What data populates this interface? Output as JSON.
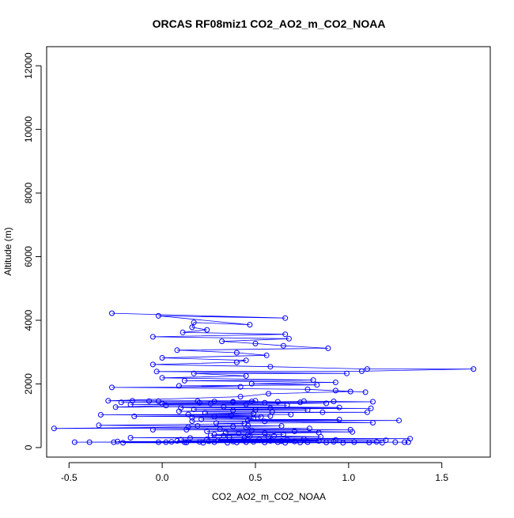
{
  "chart_data": {
    "type": "scatter",
    "title": "ORCAS RF08miz1 CO2_AO2_m_CO2_NOAA",
    "xlabel": "CO2_AO2_m_CO2_NOAA",
    "ylabel": "Altitude (m)",
    "xlim": [
      -0.62,
      1.76
    ],
    "ylim": [
      -300,
      12600
    ],
    "x_ticks": [
      -0.5,
      0.0,
      0.5,
      1.0,
      1.5
    ],
    "x_tick_labels": [
      "-0.5",
      "0.0",
      "0.5",
      "1.0",
      "1.5"
    ],
    "y_ticks": [
      0,
      2000,
      4000,
      6000,
      8000,
      10000,
      12000
    ],
    "y_tick_labels": [
      "0",
      "2000",
      "4000",
      "6000",
      "8000",
      "10000",
      "12000"
    ],
    "grid": false,
    "legend": "none",
    "series_color": "#0000ff",
    "marker": "open-circle",
    "connected": true,
    "points": [
      [
        -0.27,
        4220
      ],
      [
        0.66,
        4070
      ],
      [
        -0.02,
        4140
      ],
      [
        0.47,
        3860
      ],
      [
        0.17,
        3930
      ],
      [
        0.16,
        3780
      ],
      [
        0.24,
        3700
      ],
      [
        0.11,
        3620
      ],
      [
        0.66,
        3560
      ],
      [
        -0.05,
        3480
      ],
      [
        0.68,
        3420
      ],
      [
        0.32,
        3340
      ],
      [
        0.5,
        3270
      ],
      [
        0.65,
        3200
      ],
      [
        0.89,
        3120
      ],
      [
        0.08,
        3060
      ],
      [
        0.4,
        2980
      ],
      [
        0.56,
        2900
      ],
      [
        0.0,
        2820
      ],
      [
        0.45,
        2740
      ],
      [
        0.4,
        2680
      ],
      [
        -0.05,
        2610
      ],
      [
        0.58,
        2540
      ],
      [
        1.1,
        2470
      ],
      [
        1.67,
        2470
      ],
      [
        1.07,
        2400
      ],
      [
        -0.03,
        2390
      ],
      [
        0.99,
        2330
      ],
      [
        0.17,
        2330
      ],
      [
        0.45,
        2250
      ],
      [
        0.0,
        2190
      ],
      [
        0.81,
        2120
      ],
      [
        0.12,
        2100
      ],
      [
        0.93,
        2050
      ],
      [
        0.48,
        2010
      ],
      [
        0.83,
        1970
      ],
      [
        0.09,
        1940
      ],
      [
        0.42,
        1910
      ],
      [
        -0.27,
        1890
      ],
      [
        0.78,
        1830
      ],
      [
        1.09,
        1740
      ],
      [
        0.93,
        1790
      ],
      [
        1.01,
        1760
      ],
      [
        0.57,
        1690
      ],
      [
        0.42,
        1600
      ],
      [
        -0.29,
        1470
      ],
      [
        0.5,
        1470
      ],
      [
        -0.16,
        1470
      ],
      [
        -0.07,
        1460
      ],
      [
        -0.02,
        1460
      ],
      [
        0.19,
        1460
      ],
      [
        0.28,
        1450
      ],
      [
        0.38,
        1440
      ],
      [
        0.48,
        1450
      ],
      [
        0.62,
        1440
      ],
      [
        0.76,
        1460
      ],
      [
        0.92,
        1450
      ],
      [
        1.13,
        1440
      ],
      [
        0.74,
        1420
      ],
      [
        0.38,
        1420
      ],
      [
        -0.22,
        1420
      ],
      [
        0.2,
        1410
      ],
      [
        0.55,
        1410
      ],
      [
        0.88,
        1390
      ],
      [
        0.0,
        1380
      ],
      [
        0.26,
        1380
      ],
      [
        -0.17,
        1350
      ],
      [
        0.45,
        1360
      ],
      [
        0.67,
        1330
      ],
      [
        0.02,
        1320
      ],
      [
        -0.25,
        1270
      ],
      [
        0.33,
        1280
      ],
      [
        0.95,
        1260
      ],
      [
        0.1,
        1250
      ],
      [
        0.58,
        1240
      ],
      [
        1.12,
        1230
      ],
      [
        0.17,
        1200
      ],
      [
        0.5,
        1190
      ],
      [
        0.78,
        1180
      ],
      [
        0.38,
        1170
      ],
      [
        0.09,
        1140
      ],
      [
        0.59,
        1120
      ],
      [
        0.86,
        1110
      ],
      [
        1.1,
        1110
      ],
      [
        0.23,
        1090
      ],
      [
        0.49,
        1070
      ],
      [
        0.14,
        1040
      ],
      [
        0.69,
        1040
      ],
      [
        -0.33,
        1030
      ],
      [
        0.37,
        1010
      ],
      [
        0.58,
        990
      ],
      [
        -0.15,
        980
      ],
      [
        0.28,
        970
      ],
      [
        0.53,
        960
      ],
      [
        0.16,
        940
      ],
      [
        0.49,
        910
      ],
      [
        0.21,
        890
      ],
      [
        0.95,
        880
      ],
      [
        0.46,
        860
      ],
      [
        1.27,
        850
      ],
      [
        0.16,
        830
      ],
      [
        0.55,
        820
      ],
      [
        1.13,
        780
      ],
      [
        0.29,
        770
      ],
      [
        0.44,
        750
      ],
      [
        -0.34,
        700
      ],
      [
        0.19,
        680
      ],
      [
        0.46,
        690
      ],
      [
        0.64,
        680
      ],
      [
        0.14,
        650
      ],
      [
        0.38,
        660
      ],
      [
        -0.58,
        600
      ],
      [
        0.45,
        620
      ],
      [
        0.79,
        600
      ],
      [
        0.31,
        580
      ],
      [
        -0.05,
        560
      ],
      [
        0.13,
        560
      ],
      [
        1.01,
        560
      ],
      [
        0.48,
        540
      ],
      [
        0.24,
        510
      ],
      [
        0.71,
        510
      ],
      [
        1.02,
        490
      ],
      [
        0.34,
        480
      ],
      [
        0.84,
        470
      ],
      [
        0.55,
        450
      ],
      [
        0.41,
        440
      ],
      [
        0.28,
        410
      ],
      [
        0.65,
        410
      ],
      [
        0.46,
        400
      ],
      [
        0.26,
        380
      ],
      [
        0.33,
        370
      ],
      [
        0.47,
        360
      ],
      [
        0.6,
        360
      ],
      [
        0.85,
        340
      ],
      [
        0.57,
        330
      ],
      [
        0.36,
        320
      ],
      [
        -0.17,
        310
      ],
      [
        0.15,
        300
      ],
      [
        0.44,
        300
      ],
      [
        1.33,
        280
      ],
      [
        0.76,
        270
      ],
      [
        0.24,
        260
      ],
      [
        0.52,
        260
      ],
      [
        0.1,
        250
      ],
      [
        0.67,
        250
      ],
      [
        0.93,
        240
      ],
      [
        1.2,
        230
      ],
      [
        0.3,
        230
      ],
      [
        0.44,
        220
      ],
      [
        0.08,
        210
      ],
      [
        0.58,
        210
      ],
      [
        0.84,
        210
      ],
      [
        0.25,
        200
      ],
      [
        0.64,
        200
      ],
      [
        -0.24,
        190
      ],
      [
        0.38,
        190
      ],
      [
        0.71,
        190
      ],
      [
        0.05,
        180
      ],
      [
        0.2,
        180
      ],
      [
        0.49,
        180
      ],
      [
        0.92,
        180
      ],
      [
        1.15,
        180
      ],
      [
        -0.47,
        170
      ],
      [
        -0.39,
        170
      ],
      [
        -0.26,
        170
      ],
      [
        -0.02,
        170
      ],
      [
        0.02,
        170
      ],
      [
        0.12,
        170
      ],
      [
        0.28,
        170
      ],
      [
        0.45,
        170
      ],
      [
        0.62,
        170
      ],
      [
        0.78,
        170
      ],
      [
        1.03,
        170
      ],
      [
        1.25,
        170
      ],
      [
        1.3,
        170
      ],
      [
        1.32,
        170
      ],
      [
        0.13,
        160
      ],
      [
        0.4,
        160
      ],
      [
        0.55,
        160
      ],
      [
        0.74,
        160
      ],
      [
        0.88,
        160
      ],
      [
        1.11,
        160
      ],
      [
        -0.21,
        150
      ],
      [
        0.22,
        150
      ],
      [
        0.35,
        150
      ],
      [
        0.66,
        150
      ],
      [
        0.97,
        150
      ],
      [
        1.18,
        150
      ]
    ]
  }
}
